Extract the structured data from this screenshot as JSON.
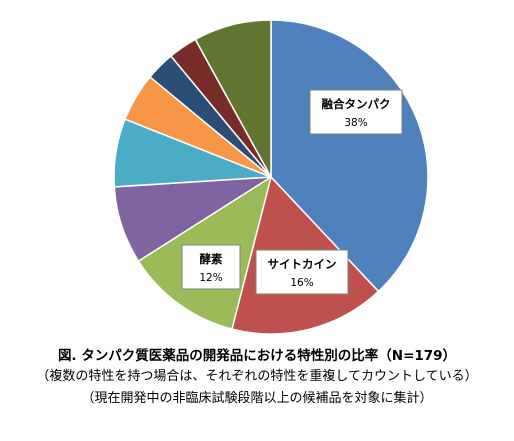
{
  "chart_data": {
    "type": "pie",
    "title": "",
    "slices": [
      {
        "label": "融合タンパク",
        "value": 38,
        "value_label": "38%",
        "color": "#4f81bd"
      },
      {
        "label": "サイトカイン",
        "value": 16,
        "value_label": "16%",
        "color": "#c0504d"
      },
      {
        "label": "酵素",
        "value": 12,
        "value_label": "12%",
        "color": "#9bbb59"
      },
      {
        "label": "",
        "value": 8,
        "value_label": "",
        "color": "#8064a2"
      },
      {
        "label": "",
        "value": 7,
        "value_label": "",
        "color": "#4bacc6"
      },
      {
        "label": "",
        "value": 5,
        "value_label": "",
        "color": "#f79646"
      },
      {
        "label": "",
        "value": 3,
        "value_label": "",
        "color": "#2c4d75"
      },
      {
        "label": "",
        "value": 3,
        "value_label": "",
        "color": "#772c2a"
      },
      {
        "label": "",
        "value": 8,
        "value_label": "",
        "color": "#5f7530"
      }
    ],
    "start_angle_deg": 0,
    "direction": "clockwise",
    "legend": "none"
  },
  "caption": {
    "title": "図. タンパク質医薬品の開発品における特性別の比率（N=179）",
    "note1": "（複数の特性を持つ場合は、それぞれの特性を重複してカウントしている）",
    "note2": "（現在開発中の非臨床試験段階以上の候補品を対象に集計）"
  }
}
